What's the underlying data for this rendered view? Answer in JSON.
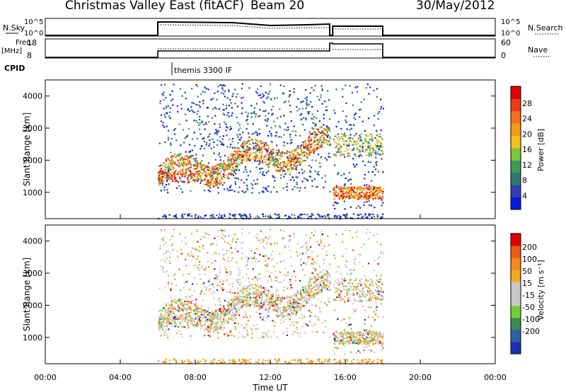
{
  "header": {
    "title": "Christmas Valley East (fitACF)",
    "beam": "Beam 20",
    "date": "30/May/2012"
  },
  "panels": {
    "nsky_label": "N.Sky",
    "nsky_ticks": [
      "10^5",
      "10^0"
    ],
    "nsky_right_ticks": [
      "10^5",
      "10^0"
    ],
    "nsearch_label": "N.Search",
    "freq_label_1": "Freq.",
    "freq_label_2": "[MHz]",
    "freq_ticks": [
      "18",
      "8"
    ],
    "nave_ticks": [
      "60",
      "0"
    ],
    "nave_label": "Nave",
    "cpid_label": "CPID",
    "cpid_value": "themis 3300 IF"
  },
  "axes": {
    "ylabel": "Slant Range [km]",
    "xlabel": "Time UT",
    "x_ticks": [
      "00:00",
      "04:00",
      "08:00",
      "12:00",
      "16:00",
      "20:00",
      "00:00"
    ],
    "y_ticks": [
      "1000",
      "2000",
      "3000",
      "4000"
    ]
  },
  "colorbars": {
    "power": {
      "label": "Power [dB]",
      "ticks": [
        "4",
        "8",
        "12",
        "16",
        "20",
        "24",
        "28"
      ],
      "colors": [
        "#0a18e6",
        "#2e3fb5",
        "#2f7a6e",
        "#3f9a55",
        "#7cc63a",
        "#f5c21b",
        "#f59a1e",
        "#f5701c",
        "#ee3a18",
        "#e00000"
      ]
    },
    "velocity": {
      "label": "Velocity [m s⁻¹]",
      "ticks": [
        "200",
        "100",
        "50",
        "15",
        "-15",
        "-50",
        "-100",
        "-200"
      ],
      "colors": [
        "#1c2fb5",
        "#2e5fa8",
        "#3c8a54",
        "#6fd03a",
        "#c8c8c8",
        "#c8c8c8",
        "#f5a623",
        "#f58a1c",
        "#f05a14",
        "#e00000"
      ]
    }
  },
  "chart_data": [
    {
      "type": "heatmap",
      "title": "Power",
      "xlabel": "Time UT",
      "ylabel": "Slant Range [km]",
      "xlim": [
        "00:00",
        "24:00"
      ],
      "ylim": [
        180,
        4500
      ],
      "observation_window": [
        "06:00",
        "18:00"
      ],
      "data_gap": [
        "15:10",
        "15:20"
      ],
      "scatter_bands": [
        {
          "start": "06:00",
          "end": "15:10",
          "range_km": [
            1600,
            2800
          ],
          "peak_db": 28
        },
        {
          "start": "06:00",
          "end": "07:30",
          "range_km": [
            1400,
            1800
          ],
          "peak_db": 28
        },
        {
          "start": "15:20",
          "end": "18:00",
          "range_km": [
            800,
            1200
          ],
          "peak_db": 24
        },
        {
          "start": "15:20",
          "end": "18:00",
          "range_km": [
            2000,
            3000
          ],
          "peak_db": 16
        }
      ]
    },
    {
      "type": "heatmap",
      "title": "Velocity",
      "xlabel": "Time UT",
      "ylabel": "Slant Range [km]",
      "xlim": [
        "00:00",
        "24:00"
      ],
      "ylim": [
        180,
        4500
      ],
      "observation_window": [
        "06:00",
        "18:00"
      ],
      "data_gap": [
        "15:10",
        "15:20"
      ],
      "dominant_values": [
        "-15",
        "15",
        "50",
        "-50"
      ]
    }
  ]
}
